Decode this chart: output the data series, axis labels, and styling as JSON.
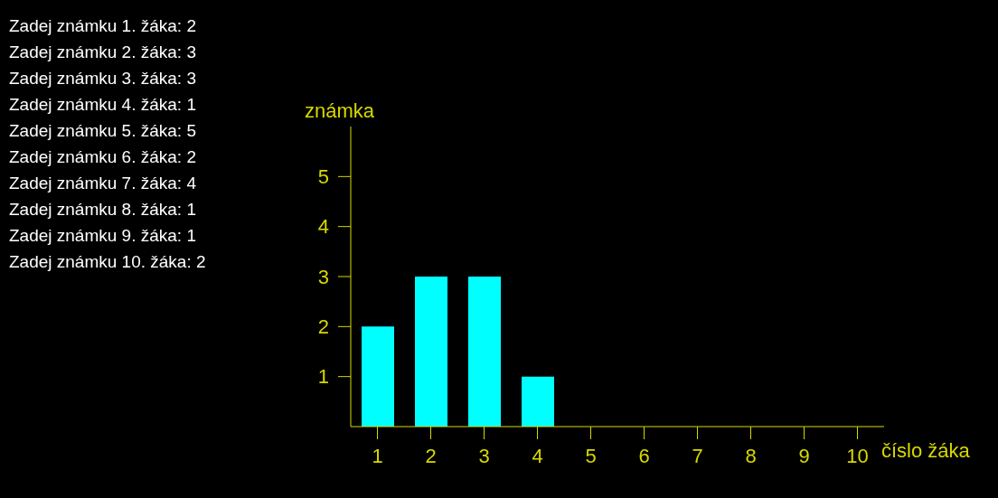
{
  "chart_data": {
    "type": "bar",
    "xlabel": "číslo žáka",
    "ylabel": "známka",
    "categories": [
      "1",
      "2",
      "3",
      "4",
      "5",
      "6",
      "7",
      "8",
      "9",
      "10"
    ],
    "values": [
      2,
      3,
      3,
      1,
      null,
      null,
      null,
      null,
      null,
      null
    ],
    "color": "#00ffff",
    "ylim": [
      0,
      6
    ],
    "yticks": [
      1,
      2,
      3,
      4,
      5
    ],
    "annotations": [
      "Zadej známku 1. žáka: 2",
      "Zadej známku 2. žáka: 3",
      "Zadej známku 3. žáka: 3",
      "Zadej známku 4. žáka: 1",
      "Zadej známku 5. žáka: 5",
      "Zadej známku 6. žáka: 2",
      "Zadej známku 7. žáka: 4",
      "Zadej známku 8. žáka: 1",
      "Zadej známku 9. žáka: 1",
      "Zadej známku 10. žáka: 2"
    ]
  }
}
